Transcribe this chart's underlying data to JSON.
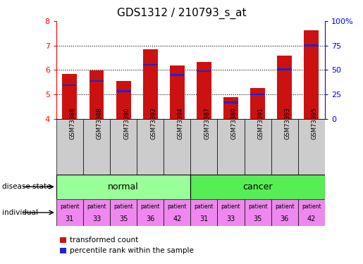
{
  "title": "GDS1312 / 210793_s_at",
  "samples": [
    "GSM73386",
    "GSM73388",
    "GSM73390",
    "GSM73392",
    "GSM73394",
    "GSM73387",
    "GSM73389",
    "GSM73391",
    "GSM73393",
    "GSM73395"
  ],
  "bar_values": [
    5.85,
    5.98,
    5.55,
    6.85,
    6.18,
    6.32,
    4.88,
    5.27,
    6.58,
    7.62
  ],
  "percentile_values": [
    5.38,
    5.55,
    5.13,
    6.22,
    5.8,
    5.95,
    4.67,
    5.0,
    6.03,
    7.0
  ],
  "bar_bottom": 4.0,
  "ylim": [
    4.0,
    8.0
  ],
  "yticks": [
    4,
    5,
    6,
    7,
    8
  ],
  "bar_color": "#cc1111",
  "percentile_color": "#2222cc",
  "normal_color": "#99ff99",
  "cancer_color": "#55ee55",
  "individual_color": "#ee88ee",
  "sample_bg_color": "#cccccc",
  "label_fontsize": 7,
  "title_fontsize": 11,
  "bar_width": 0.55,
  "background_color": "#ffffff",
  "patient_labels": [
    "31",
    "33",
    "35",
    "36",
    "42",
    "31",
    "33",
    "35",
    "36",
    "42"
  ]
}
